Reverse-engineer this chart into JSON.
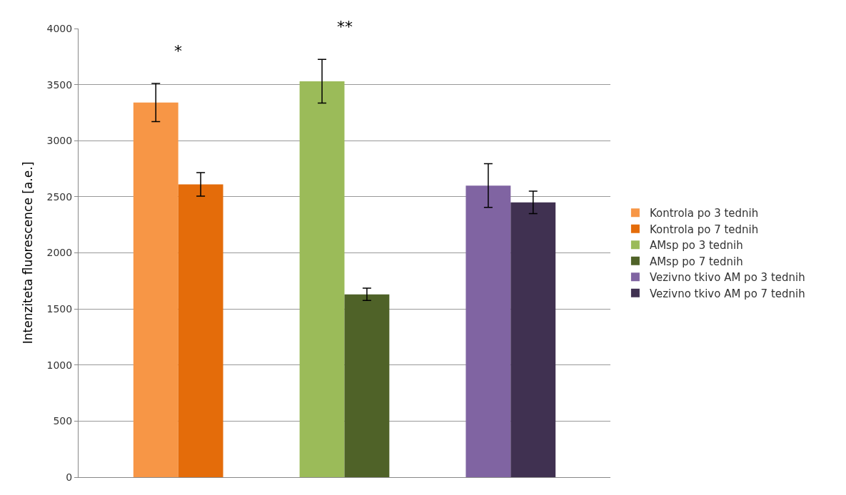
{
  "chart_data": {
    "type": "bar",
    "ylabel": "Intenziteta fluorescence [a.e.]",
    "categories": [
      null,
      null,
      null
    ],
    "series": [
      {
        "name": "Kontrola po 3 tednih",
        "color": "#f79646",
        "values": [
          3340,
          null,
          null
        ],
        "errors": [
          170,
          null,
          null
        ]
      },
      {
        "name": "Kontrola po 7 tednih",
        "color": "#e46c0a",
        "values": [
          2610,
          null,
          null
        ],
        "errors": [
          105,
          null,
          null
        ]
      },
      {
        "name": "AMsp po 3 tednih",
        "color": "#9bbb59",
        "values": [
          null,
          3530,
          null
        ],
        "errors": [
          null,
          195,
          null
        ]
      },
      {
        "name": "AMsp po 7 tednih",
        "color": "#4f6228",
        "values": [
          null,
          1630,
          null
        ],
        "errors": [
          null,
          55,
          null
        ]
      },
      {
        "name": "Vezivno tkivo AM po 3 tednih",
        "color": "#8064a2",
        "values": [
          null,
          null,
          2600
        ],
        "errors": [
          null,
          null,
          195
        ]
      },
      {
        "name": "Vezivno tkivo AM po 7 tednih",
        "color": "#403151",
        "values": [
          null,
          null,
          2450
        ],
        "errors": [
          null,
          null,
          100
        ]
      }
    ],
    "annotations": [
      "*",
      "**"
    ],
    "ylim": [
      0,
      4000
    ],
    "yticks": [
      0,
      500,
      1000,
      1500,
      2000,
      2500,
      3000,
      3500,
      4000
    ],
    "grid": "y",
    "legend": "right"
  }
}
